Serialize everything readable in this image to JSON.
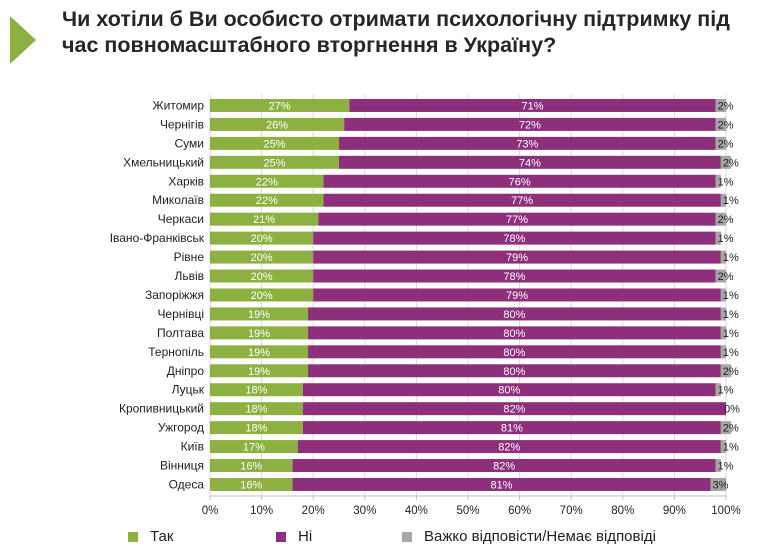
{
  "title": "Чи хотіли б Ви особисто отримати психологічну підтримку під час повномасштабного вторгнення в Україну?",
  "colors": {
    "yes": "#8db141",
    "no": "#8e2f7c",
    "hard": "#a6a6a6",
    "accent": "#8db141"
  },
  "chart_data": {
    "type": "bar",
    "orientation": "horizontal",
    "stacked": true,
    "title": "Чи хотіли б Ви особисто отримати психологічну підтримку під час повномасштабного вторгнення в Україну?",
    "categories": [
      "Житомир",
      "Чернігів",
      "Суми",
      "Хмельницький",
      "Харків",
      "Миколаїв",
      "Черкаси",
      "Івано-Франківськ",
      "Рівне",
      "Львів",
      "Запоріжжя",
      "Чернівці",
      "Полтава",
      "Тернопіль",
      "Дніпро",
      "Луцьк",
      "Кропивницький",
      "Ужгород",
      "Київ",
      "Вінниця",
      "Одеса"
    ],
    "series": [
      {
        "name": "Так",
        "values": [
          27,
          26,
          25,
          25,
          22,
          22,
          21,
          20,
          20,
          20,
          20,
          19,
          19,
          19,
          19,
          18,
          18,
          18,
          17,
          16,
          16
        ]
      },
      {
        "name": "Ні",
        "values": [
          71,
          72,
          73,
          74,
          76,
          77,
          77,
          78,
          79,
          78,
          79,
          80,
          80,
          80,
          80,
          80,
          82,
          81,
          82,
          82,
          81
        ]
      },
      {
        "name": "Важко відповісти/Немає відповіді",
        "values": [
          2,
          2,
          2,
          2,
          1,
          1,
          2,
          1,
          1,
          2,
          1,
          1,
          1,
          1,
          2,
          1,
          0,
          2,
          1,
          1,
          3
        ]
      }
    ],
    "value_suffix": "%",
    "xlim": [
      0,
      100
    ],
    "xticks": [
      "0%",
      "10%",
      "20%",
      "30%",
      "40%",
      "50%",
      "60%",
      "70%",
      "80%",
      "90%",
      "100%"
    ],
    "legend_position": "bottom"
  }
}
